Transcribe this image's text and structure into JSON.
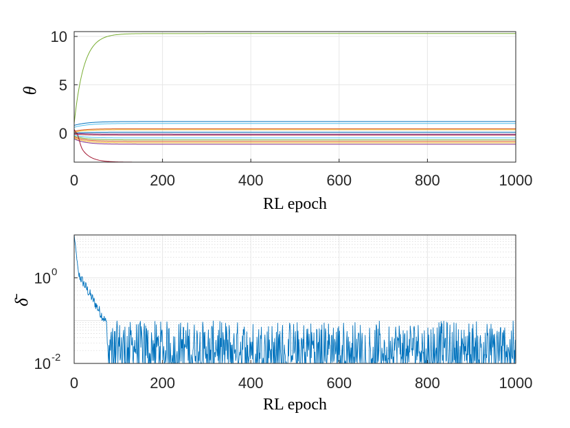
{
  "chart_data": [
    {
      "type": "line",
      "xlabel": "RL epoch",
      "ylabel": "θ",
      "xlim": [
        0,
        1000
      ],
      "ylim": [
        -3,
        10.5
      ],
      "xticks": [
        0,
        200,
        400,
        600,
        800,
        1000
      ],
      "yticks": [
        0,
        5,
        10
      ],
      "grid": true,
      "series": [
        {
          "color": "#77ac30",
          "start": 1.0,
          "final": 10.3,
          "tau": 22
        },
        {
          "color": "#0072bd",
          "start": 0.8,
          "final": 1.2,
          "tau": 30
        },
        {
          "color": "#4dbeee",
          "start": 0.6,
          "final": 1.0,
          "tau": 30
        },
        {
          "color": "#d95319",
          "start": 0.2,
          "final": 0.45,
          "tau": 25
        },
        {
          "color": "#edb120",
          "start": 0.1,
          "final": 0.35,
          "tau": 25
        },
        {
          "color": "#0072bd",
          "start": 0.0,
          "final": 0.1,
          "tau": 25
        },
        {
          "color": "#7e2f8e",
          "start": 0.0,
          "final": -0.1,
          "tau": 25
        },
        {
          "color": "#a2142f",
          "start": -0.1,
          "final": -0.2,
          "tau": 25
        },
        {
          "color": "#4dbeee",
          "start": -0.2,
          "final": -0.5,
          "tau": 25
        },
        {
          "color": "#77ac30",
          "start": -0.3,
          "final": -0.7,
          "tau": 25
        },
        {
          "color": "#d95319",
          "start": -0.4,
          "final": -0.85,
          "tau": 25
        },
        {
          "color": "#edb120",
          "start": -0.5,
          "final": -1.0,
          "tau": 25
        },
        {
          "color": "#7e2f8e",
          "start": -0.6,
          "final": -1.15,
          "tau": 25
        },
        {
          "color": "#a2142f",
          "start": 0.3,
          "final": -3.0,
          "tau": 20
        }
      ]
    },
    {
      "type": "line",
      "xlabel": "RL epoch",
      "ylabel": "δ̄",
      "yscale": "log",
      "xlim": [
        0,
        1000
      ],
      "ylim": [
        0.01,
        10
      ],
      "xticks": [
        0,
        200,
        400,
        600,
        800,
        1000
      ],
      "yticks": [
        {
          "value": 0.01,
          "base": "10",
          "exp": "-2"
        },
        {
          "value": 1,
          "base": "10",
          "exp": "0"
        }
      ],
      "grid": true,
      "series": [
        {
          "color": "#0072bd",
          "description": "decays from ~10 to ~0.1 by epoch ~75, then fluctuates between 0.01 and ~0.1",
          "initial": 10,
          "knee": {
            "x": 10,
            "y": 1.2
          },
          "floor_start": 75,
          "floor_range": [
            0.01,
            0.1
          ]
        }
      ]
    }
  ]
}
